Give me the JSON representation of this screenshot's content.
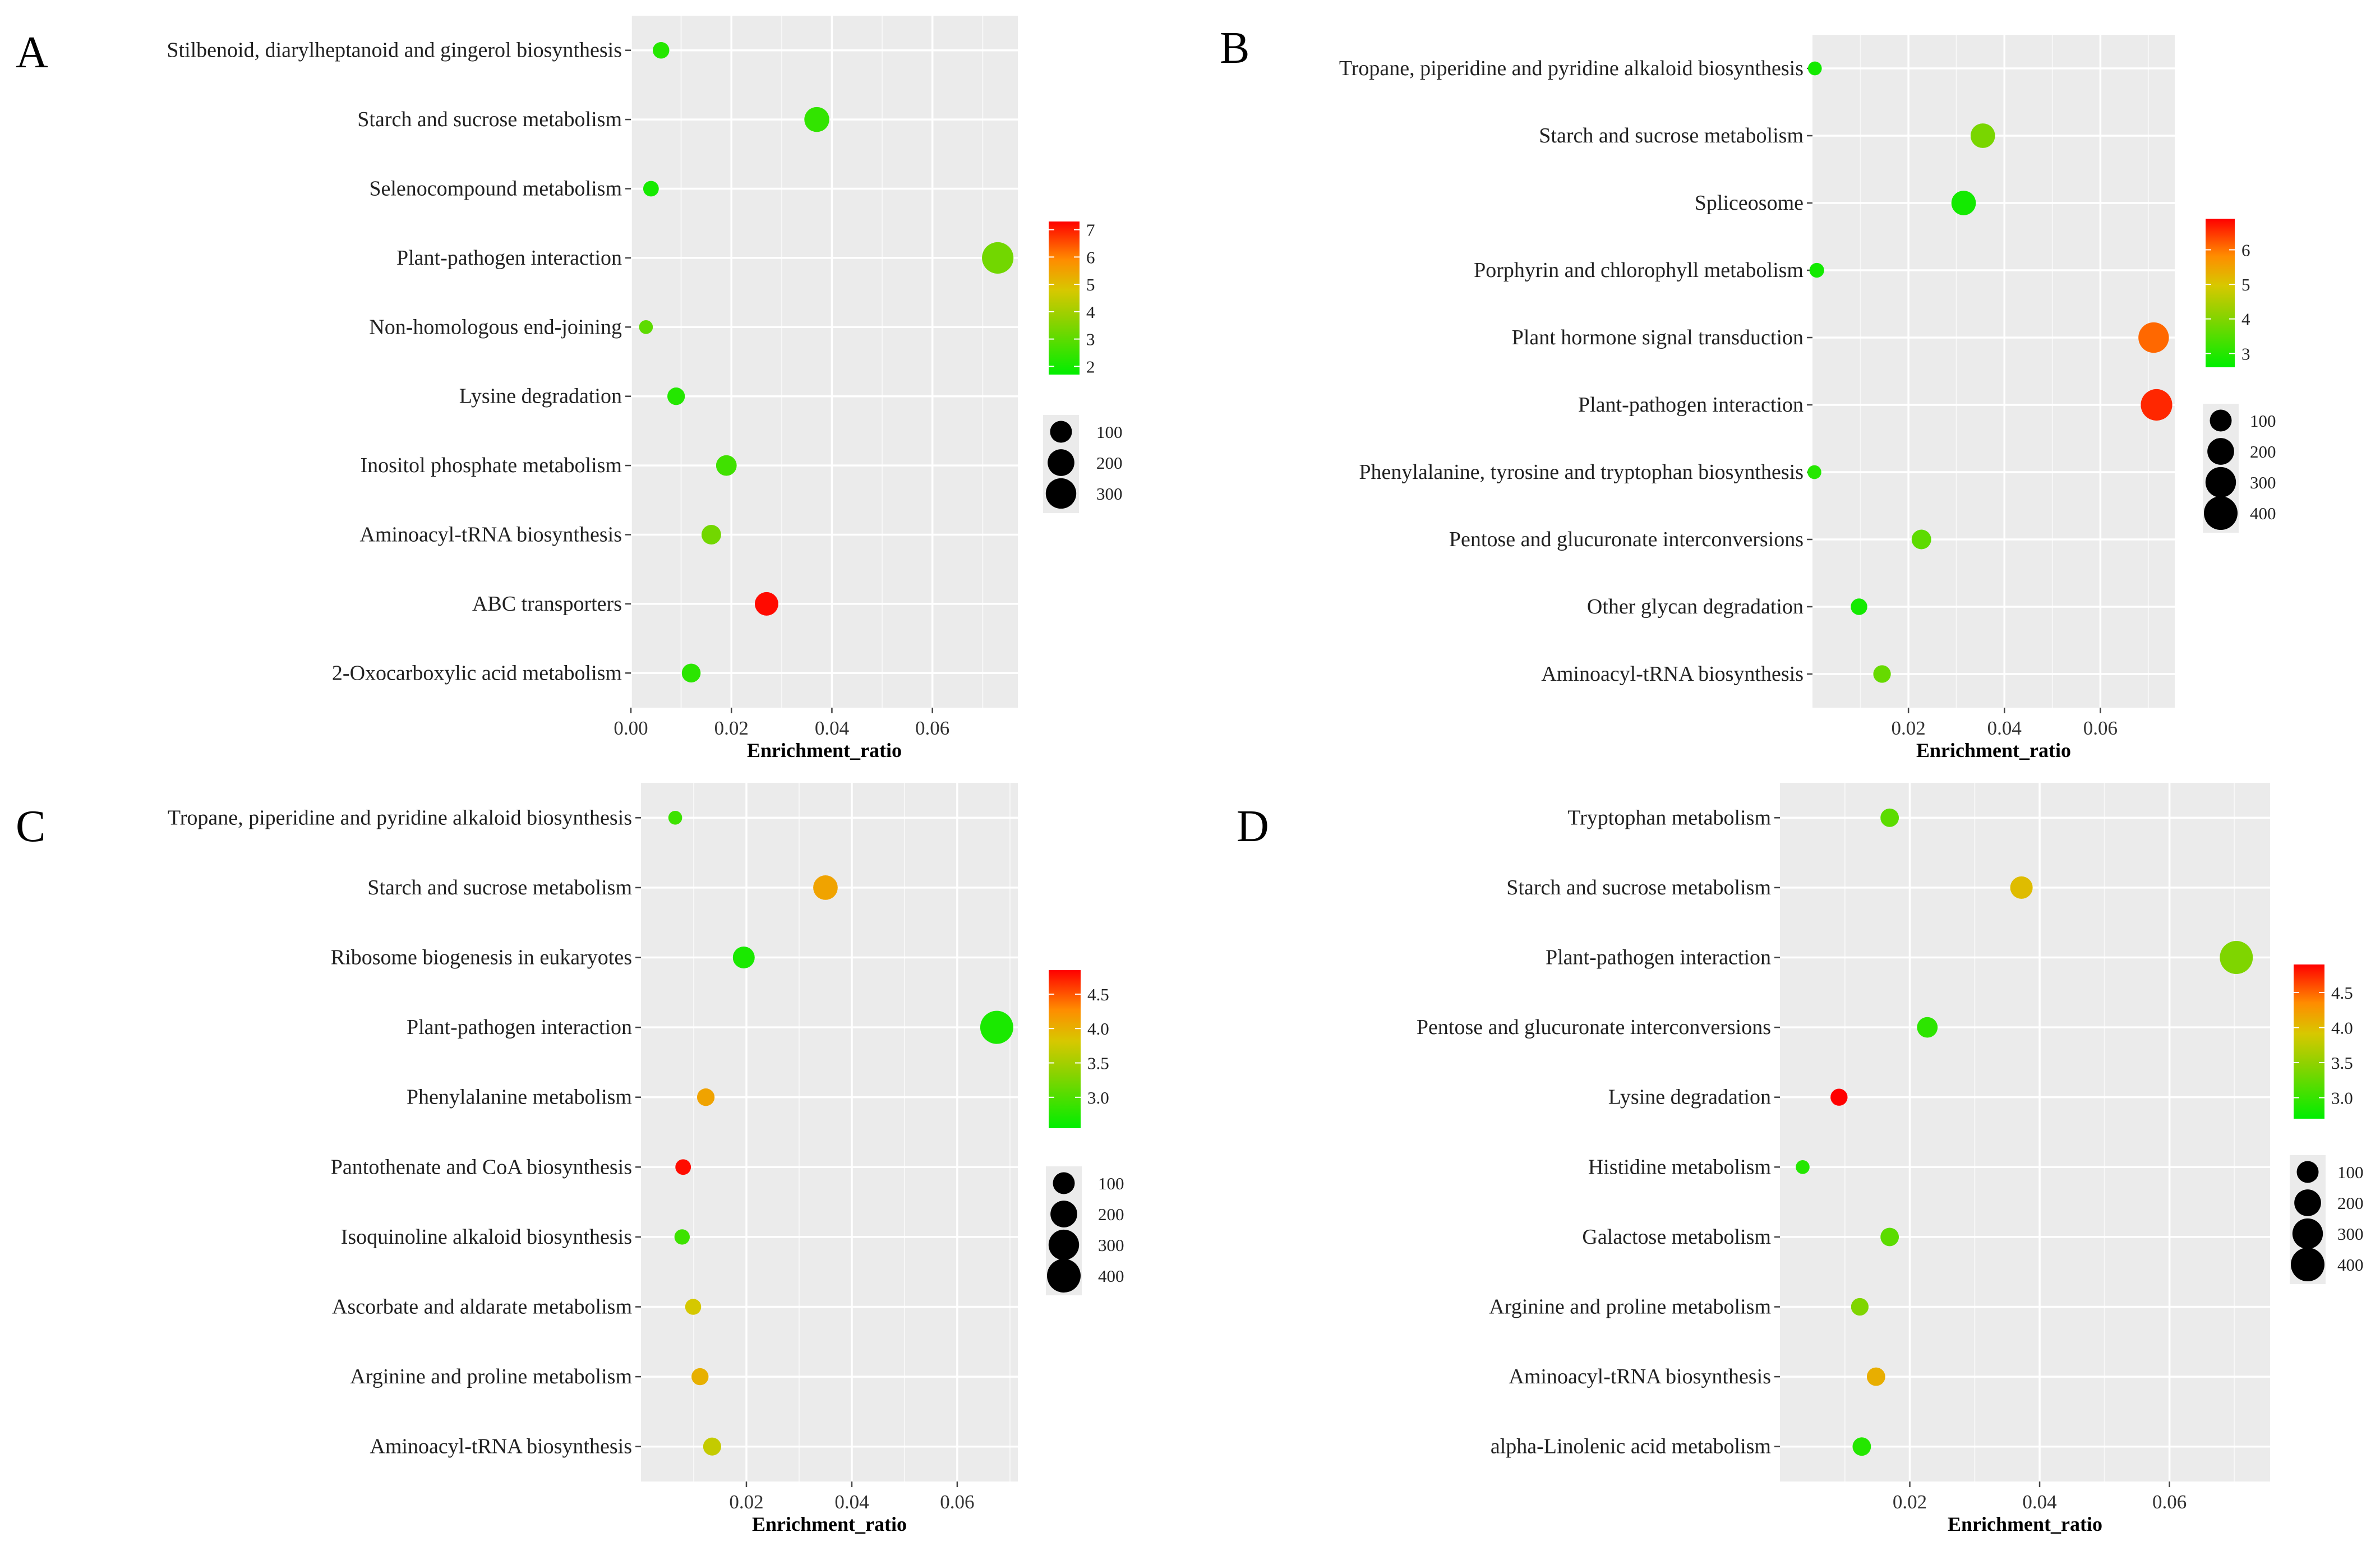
{
  "chart_data": [
    {
      "panel": "A",
      "type": "scatter",
      "xlabel": "Enrichment_ratio",
      "ylabel": "",
      "xlim": [
        0.0,
        0.077
      ],
      "xticks": [
        "0.00",
        "0.02",
        "0.04",
        "0.06"
      ],
      "xtick_values": [
        0.0,
        0.02,
        0.04,
        0.06
      ],
      "color_legend": {
        "ticks": [
          "7",
          "6",
          "5",
          "4",
          "3",
          "2"
        ],
        "tick_values": [
          7,
          6,
          5,
          4,
          3,
          2
        ],
        "range": [
          1.7,
          7.3
        ]
      },
      "size_legend": {
        "labels": [
          "100",
          "200",
          "300"
        ],
        "values": [
          100,
          200,
          300
        ]
      },
      "categories": [
        "Stilbenoid, diarylheptanoid and gingerol biosynthesis",
        "Starch and sucrose metabolism",
        "Selenocompound metabolism",
        "Plant-pathogen interaction",
        "Non-homologous end-joining",
        "Lysine degradation",
        "Inositol phosphate metabolism",
        "Aminoacyl-tRNA biosynthesis",
        "ABC transporters",
        "2-Oxocarboxylic acid metabolism"
      ],
      "points": [
        {
          "x": 0.006,
          "color": 2.2,
          "size": 30
        },
        {
          "x": 0.037,
          "color": 2.4,
          "size": 160
        },
        {
          "x": 0.004,
          "color": 2.0,
          "size": 22
        },
        {
          "x": 0.073,
          "color": 3.3,
          "size": 330
        },
        {
          "x": 0.003,
          "color": 3.0,
          "size": 10
        },
        {
          "x": 0.009,
          "color": 2.2,
          "size": 40
        },
        {
          "x": 0.019,
          "color": 2.6,
          "size": 80
        },
        {
          "x": 0.016,
          "color": 3.3,
          "size": 65
        },
        {
          "x": 0.027,
          "color": 7.2,
          "size": 130
        },
        {
          "x": 0.012,
          "color": 2.3,
          "size": 55
        }
      ]
    },
    {
      "panel": "B",
      "type": "scatter",
      "xlabel": "Enrichment_ratio",
      "ylabel": "",
      "xlim": [
        0.0,
        0.0755
      ],
      "xticks": [
        "0.02",
        "0.04",
        "0.06"
      ],
      "xtick_values": [
        0.02,
        0.04,
        0.06
      ],
      "color_legend": {
        "ticks": [
          "6",
          "5",
          "4",
          "3"
        ],
        "tick_values": [
          6,
          5,
          4,
          3
        ],
        "range": [
          2.6,
          6.9
        ]
      },
      "size_legend": {
        "labels": [
          "100",
          "200",
          "300",
          "400"
        ],
        "values": [
          100,
          200,
          300,
          400
        ]
      },
      "categories": [
        "Tropane, piperidine and pyridine alkaloid biosynthesis",
        "Starch and sucrose metabolism",
        "Spliceosome",
        "Porphyrin and chlorophyll metabolism",
        "Plant hormone signal transduction",
        "Plant-pathogen interaction",
        "Phenylalanine, tyrosine and tryptophan biosynthesis",
        "Pentose and glucuronate interconversions",
        "Other glycan degradation",
        "Aminoacyl-tRNA biosynthesis"
      ],
      "points": [
        {
          "x": 0.0005,
          "color": 2.8,
          "size": 10
        },
        {
          "x": 0.0355,
          "color": 3.9,
          "size": 150
        },
        {
          "x": 0.0315,
          "color": 2.8,
          "size": 150
        },
        {
          "x": 0.0009,
          "color": 2.8,
          "size": 15
        },
        {
          "x": 0.0711,
          "color": 6.1,
          "size": 300
        },
        {
          "x": 0.0717,
          "color": 6.6,
          "size": 330
        },
        {
          "x": 0.0004,
          "color": 3.0,
          "size": 10
        },
        {
          "x": 0.0227,
          "color": 3.6,
          "size": 65
        },
        {
          "x": 0.0097,
          "color": 2.8,
          "size": 30
        },
        {
          "x": 0.0145,
          "color": 3.7,
          "size": 40
        }
      ]
    },
    {
      "panel": "C",
      "type": "scatter",
      "xlabel": "Enrichment_ratio",
      "ylabel": "",
      "xlim": [
        0.0,
        0.0715
      ],
      "xticks": [
        "0.02",
        "0.04",
        "0.06"
      ],
      "xtick_values": [
        0.02,
        0.04,
        0.06
      ],
      "color_legend": {
        "ticks": [
          "4.5",
          "4.0",
          "3.5",
          "3.0"
        ],
        "tick_values": [
          4.5,
          4.0,
          3.5,
          3.0
        ],
        "range": [
          2.55,
          4.85
        ]
      },
      "size_legend": {
        "labels": [
          "100",
          "200",
          "300",
          "400"
        ],
        "values": [
          100,
          200,
          300,
          400
        ]
      },
      "categories": [
        "Tropane, piperidine and pyridine alkaloid biosynthesis",
        "Starch and sucrose metabolism",
        "Ribosome biogenesis in eukaryotes",
        "Plant-pathogen interaction",
        "Phenylalanine metabolism",
        "Pantothenate and CoA biosynthesis",
        "Isoquinoline alkaloid biosynthesis",
        "Ascorbate and aldarate metabolism",
        "Arginine and proline metabolism",
        "Aminoacyl-tRNA biosynthesis"
      ],
      "points": [
        {
          "x": 0.0065,
          "color": 2.9,
          "size": 10
        },
        {
          "x": 0.035,
          "color": 4.1,
          "size": 150
        },
        {
          "x": 0.0195,
          "color": 2.7,
          "size": 100
        },
        {
          "x": 0.0675,
          "color": 2.7,
          "size": 380
        },
        {
          "x": 0.0123,
          "color": 4.1,
          "size": 40
        },
        {
          "x": 0.008,
          "color": 4.8,
          "size": 22
        },
        {
          "x": 0.0078,
          "color": 2.9,
          "size": 20
        },
        {
          "x": 0.0099,
          "color": 3.8,
          "size": 25
        },
        {
          "x": 0.0112,
          "color": 4.0,
          "size": 35
        },
        {
          "x": 0.0135,
          "color": 3.7,
          "size": 45
        }
      ]
    },
    {
      "panel": "D",
      "type": "scatter",
      "xlabel": "Enrichment_ratio",
      "ylabel": "",
      "xlim": [
        0.0,
        0.0755
      ],
      "xticks": [
        "0.02",
        "0.04",
        "0.06"
      ],
      "xtick_values": [
        0.02,
        0.04,
        0.06
      ],
      "color_legend": {
        "ticks": [
          "4.5",
          "4.0",
          "3.5",
          "3.0"
        ],
        "tick_values": [
          4.5,
          4.0,
          3.5,
          3.0
        ],
        "range": [
          2.7,
          4.9
        ]
      },
      "size_legend": {
        "labels": [
          "100",
          "200",
          "300",
          "400"
        ],
        "values": [
          100,
          200,
          300,
          400
        ]
      },
      "categories": [
        "Tryptophan metabolism",
        "Starch and sucrose metabolism",
        "Plant-pathogen interaction",
        "Pentose and glucuronate interconversions",
        "Lysine degradation",
        "Histidine metabolism",
        "Galactose metabolism",
        "Arginine and proline metabolism",
        "Aminoacyl-tRNA biosynthesis",
        "alpha-Linolenic acid metabolism"
      ],
      "points": [
        {
          "x": 0.0169,
          "color": 3.2,
          "size": 50
        },
        {
          "x": 0.0372,
          "color": 4.0,
          "size": 110
        },
        {
          "x": 0.0703,
          "color": 3.4,
          "size": 380
        },
        {
          "x": 0.0227,
          "color": 2.95,
          "size": 80
        },
        {
          "x": 0.0091,
          "color": 4.9,
          "size": 35
        },
        {
          "x": 0.0035,
          "color": 2.9,
          "size": 10
        },
        {
          "x": 0.0169,
          "color": 3.2,
          "size": 50
        },
        {
          "x": 0.0123,
          "color": 3.4,
          "size": 40
        },
        {
          "x": 0.0148,
          "color": 4.1,
          "size": 50
        },
        {
          "x": 0.0126,
          "color": 2.9,
          "size": 50
        }
      ]
    }
  ]
}
